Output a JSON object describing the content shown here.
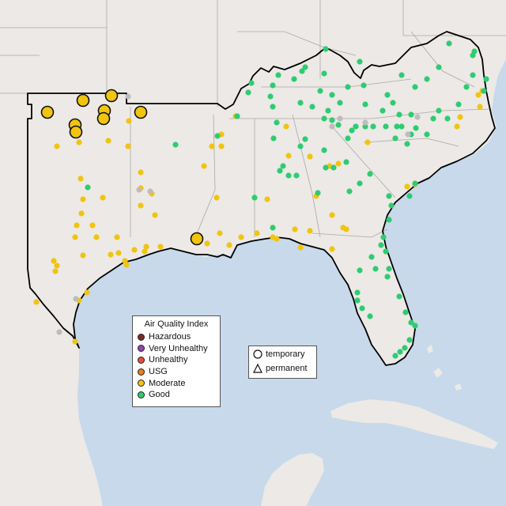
{
  "map": {
    "colors": {
      "ocean": "#c7d9ea",
      "land": "#ece9e6",
      "state_border": "#aaa8a6",
      "region_outline": "#000000",
      "good": "#2ecc71",
      "moderate": "#f1c40f",
      "no_data": "#bdbdbd"
    }
  },
  "legend": {
    "title": "Air Quality Index",
    "items": [
      {
        "label": "Hazardous",
        "color": "#7b2a2a"
      },
      {
        "label": "Very Unhealthy",
        "color": "#8e44ad"
      },
      {
        "label": "Unhealthy",
        "color": "#e74c3c"
      },
      {
        "label": "USG",
        "color": "#e67e22"
      },
      {
        "label": "Moderate",
        "color": "#f1c40f"
      },
      {
        "label": "Good",
        "color": "#2ecc71"
      }
    ]
  },
  "monitor_legend": {
    "temporary_label": "temporary",
    "permanent_label": "permanent",
    "temporary_icon": "circle-icon",
    "permanent_icon": "triangle-icon"
  }
}
